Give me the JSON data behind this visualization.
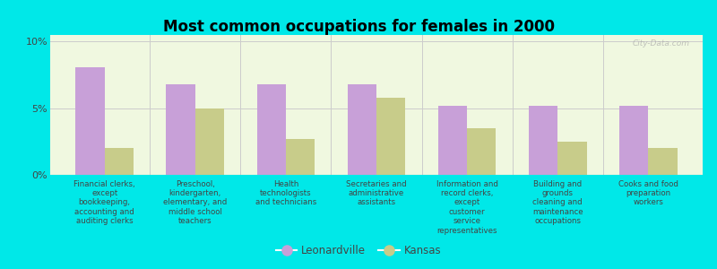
{
  "title": "Most common occupations for females in 2000",
  "categories": [
    "Financial clerks,\nexcept\nbookkeeping,\naccounting and\nauditing clerks",
    "Preschool,\nkindergarten,\nelementary, and\nmiddle school\nteachers",
    "Health\ntechnologists\nand technicians",
    "Secretaries and\nadministrative\nassistants",
    "Information and\nrecord clerks,\nexcept\ncustomer\nservice\nrepresentatives",
    "Building and\ngrounds\ncleaning and\nmaintenance\noccupations",
    "Cooks and food\npreparation\nworkers"
  ],
  "leonardville_values": [
    8.1,
    6.8,
    6.8,
    6.8,
    5.2,
    5.2,
    5.2
  ],
  "kansas_values": [
    2.0,
    5.0,
    2.7,
    5.8,
    3.5,
    2.5,
    2.0
  ],
  "leonardville_color": "#c8a0d8",
  "kansas_color": "#c8cc8a",
  "background_color": "#00e8e8",
  "plot_bg_top": "#e8f0d8",
  "plot_bg_bottom": "#f8fff0",
  "ylim": [
    0,
    10.5
  ],
  "yticks": [
    0,
    5,
    10
  ],
  "ytick_labels": [
    "0%",
    "5%",
    "10%"
  ],
  "legend_leonardville": "Leonardville",
  "legend_kansas": "Kansas",
  "watermark": "City-Data.com",
  "bar_width": 0.32
}
